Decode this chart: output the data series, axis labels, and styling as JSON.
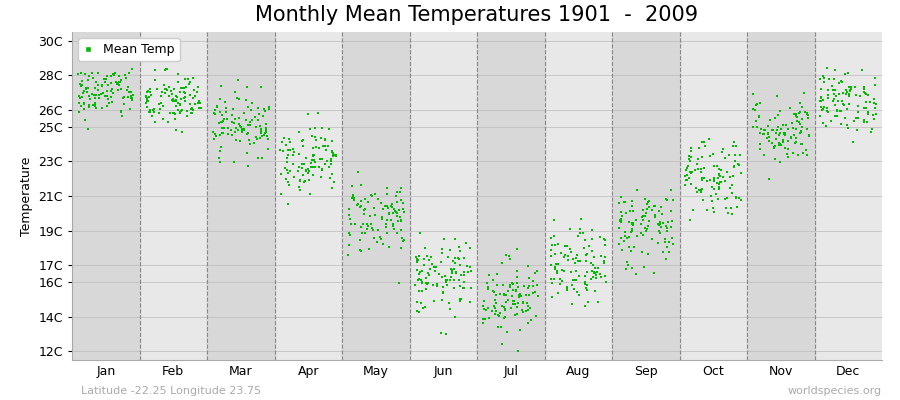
{
  "title": "Monthly Mean Temperatures 1901  -  2009",
  "ylabel": "Temperature",
  "xlabel_labels": [
    "Jan",
    "Feb",
    "Mar",
    "Apr",
    "May",
    "Jun",
    "Jul",
    "Aug",
    "Sep",
    "Oct",
    "Nov",
    "Dec"
  ],
  "ytick_labels": [
    "12C",
    "14C",
    "16C",
    "17C",
    "19C",
    "21C",
    "23C",
    "25C",
    "26C",
    "28C",
    "30C"
  ],
  "ytick_values": [
    12,
    14,
    16,
    17,
    19,
    21,
    23,
    25,
    26,
    28,
    30
  ],
  "ylim": [
    11.5,
    30.5
  ],
  "dot_color": "#00bb00",
  "dot_size": 3,
  "background_color": "#ffffff",
  "plot_bg_color": "#e8e8e8",
  "stripe_color": "#d8d8d8",
  "legend_label": "Mean Temp",
  "footer_left": "Latitude -22.25 Longitude 23.75",
  "footer_right": "worldspecies.org",
  "title_fontsize": 15,
  "axis_fontsize": 9,
  "footer_fontsize": 8,
  "monthly_means": [
    27.0,
    26.5,
    25.2,
    23.2,
    19.8,
    16.2,
    15.2,
    16.8,
    19.2,
    22.2,
    24.8,
    26.5
  ],
  "monthly_stds": [
    0.8,
    0.85,
    0.9,
    1.0,
    1.1,
    1.1,
    1.1,
    1.1,
    1.2,
    1.2,
    1.0,
    0.9
  ],
  "n_years": 109,
  "seed": 42,
  "xlim": [
    0,
    12
  ],
  "month_boundaries": [
    1,
    2,
    3,
    4,
    5,
    6,
    7,
    8,
    9,
    10,
    11
  ],
  "xtick_positions": [
    0.5,
    1.5,
    2.5,
    3.5,
    4.5,
    5.5,
    6.5,
    7.5,
    8.5,
    9.5,
    10.5,
    11.5
  ]
}
